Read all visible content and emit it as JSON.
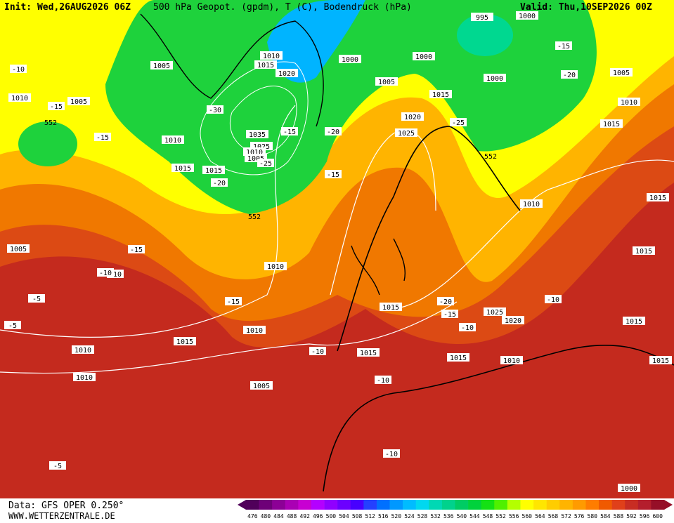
{
  "header": {
    "init": "Init: Wed,26AUG2026 06Z",
    "title": "500 hPa Geopot. (gpdm), T (C), Bodendruck (hPa)",
    "valid": "Valid: Thu,10SEP2026 00Z"
  },
  "footer": {
    "source": "Data: GFS OPER 0.250°",
    "site": "WWW.WETTERZENTRALE.DE"
  },
  "colorbar": {
    "labels": [
      "476",
      "480",
      "484",
      "488",
      "492",
      "496",
      "500",
      "504",
      "508",
      "512",
      "516",
      "520",
      "524",
      "528",
      "532",
      "536",
      "540",
      "544",
      "548",
      "552",
      "556",
      "560",
      "564",
      "568",
      "572",
      "576",
      "580",
      "584",
      "588",
      "592",
      "596",
      "600"
    ],
    "colors": [
      "#50005a",
      "#6e0078",
      "#8c0096",
      "#aa00b4",
      "#c800d2",
      "#b400ff",
      "#9000ff",
      "#6c00ff",
      "#4800ff",
      "#2440ff",
      "#0070ff",
      "#0098ff",
      "#00bcff",
      "#00d8f0",
      "#00d8b4",
      "#00d28c",
      "#00cc64",
      "#00d23c",
      "#14e114",
      "#50f000",
      "#b4ff00",
      "#ffff00",
      "#ffe600",
      "#ffcd00",
      "#ffb400",
      "#ff9b00",
      "#ff7d00",
      "#f05a00",
      "#e0401a",
      "#c82d23",
      "#b41e2d",
      "#960f28"
    ]
  },
  "map": {
    "pressure_labels": [
      "1010",
      "1005",
      "1000",
      "1010",
      "1015",
      "1020",
      "1035",
      "1025",
      "1010",
      "1005",
      "1000",
      "1010",
      "1005",
      "1015",
      "1020",
      "1025",
      "1000",
      "1005",
      "995",
      "1000",
      "1005",
      "1010",
      "1015",
      "1015",
      "1010",
      "1015",
      "1015",
      "1015",
      "1005",
      "1010",
      "1015",
      "1025",
      "1020",
      "1015",
      "1010",
      "1010",
      "1015",
      "1015",
      "1015",
      "1010",
      "1015",
      "1010",
      "1005",
      "1000"
    ],
    "temperature_labels": [
      "-10",
      "-15",
      "-15",
      "-30",
      "-25",
      "-20",
      "-20",
      "-25",
      "-15",
      "-20",
      "-15",
      "-15",
      "-10",
      "-15",
      "-10",
      "-5",
      "-5",
      "-10",
      "-10",
      "-20",
      "-15",
      "-10",
      "-10",
      "-15",
      "-10",
      "-5"
    ],
    "height_labels": [
      "552",
      "552",
      "552"
    ]
  }
}
